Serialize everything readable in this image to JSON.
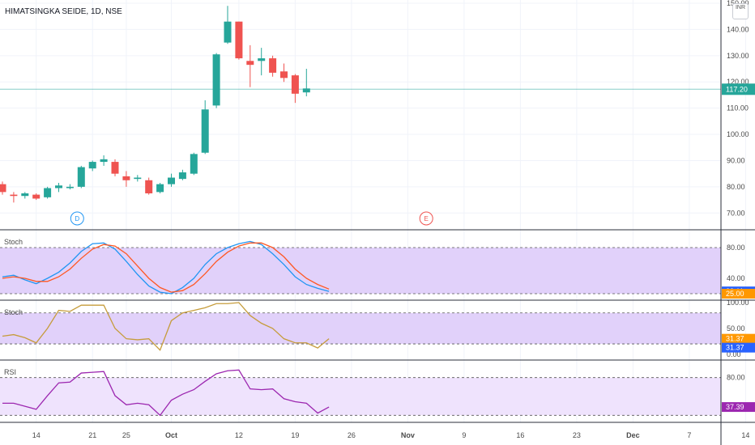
{
  "header": {
    "symbol_title": "HIMATSINGKA SEIDE, 1D, NSE",
    "currency_line1": "",
    "currency_line2": "INR"
  },
  "colors": {
    "up": "#26a69a",
    "down": "#ef5350",
    "stoch_k": "#2196f3",
    "stoch_d": "#ff5722",
    "stoch2_line": "#c69c3b",
    "rsi_line": "#9c27b0",
    "band_fill": "#e1d1fa",
    "band_fill_rsi": "#efe3fd",
    "last_price": "#26a69a",
    "badge_blue": "#2962ff",
    "badge_orange": "#ff9800",
    "badge_purple": "#9c27b0"
  },
  "chart_data": [
    {
      "type": "candlestick",
      "title": "HIMATSINGKA SEIDE, 1D, NSE",
      "ylim": [
        67,
        150
      ],
      "y_ticks": [
        "150.00",
        "140.00",
        "130.00",
        "120.00",
        "110.00",
        "100.00",
        "90.00",
        "80.00",
        "70.00"
      ],
      "y_tick_values": [
        150,
        140,
        130,
        120,
        110,
        100,
        90,
        80,
        70
      ],
      "x_ticks": [
        {
          "label": "14",
          "i": 3
        },
        {
          "label": "21",
          "i": 8
        },
        {
          "label": "25",
          "i": 11
        },
        {
          "label": "Oct",
          "i": 15
        },
        {
          "label": "12",
          "i": 21
        },
        {
          "label": "19",
          "i": 26
        },
        {
          "label": "26",
          "i": 31
        },
        {
          "label": "Nov",
          "i": 36
        },
        {
          "label": "9",
          "i": 41
        },
        {
          "label": "16",
          "i": 46
        },
        {
          "label": "23",
          "i": 51
        },
        {
          "label": "Dec",
          "i": 56
        },
        {
          "label": "7",
          "i": 61
        },
        {
          "label": "14",
          "i": 66
        }
      ],
      "candles": [
        {
          "o": 81,
          "h": 82,
          "l": 77,
          "c": 78
        },
        {
          "o": 77,
          "h": 78,
          "l": 74,
          "c": 76.5
        },
        {
          "o": 76.5,
          "h": 78,
          "l": 75.5,
          "c": 77.5
        },
        {
          "o": 77,
          "h": 77.5,
          "l": 75,
          "c": 75.5
        },
        {
          "o": 76,
          "h": 80,
          "l": 75.5,
          "c": 79.5
        },
        {
          "o": 79.5,
          "h": 81.5,
          "l": 78,
          "c": 80.5
        },
        {
          "o": 79.5,
          "h": 81,
          "l": 79,
          "c": 80
        },
        {
          "o": 80,
          "h": 88,
          "l": 79.5,
          "c": 87.5
        },
        {
          "o": 87,
          "h": 90,
          "l": 86,
          "c": 89.5
        },
        {
          "o": 89.5,
          "h": 92,
          "l": 88,
          "c": 90.5
        },
        {
          "o": 89.5,
          "h": 90.5,
          "l": 84,
          "c": 85
        },
        {
          "o": 84,
          "h": 86,
          "l": 80,
          "c": 82.5
        },
        {
          "o": 83,
          "h": 84.5,
          "l": 82,
          "c": 83.5
        },
        {
          "o": 82.5,
          "h": 83.5,
          "l": 77,
          "c": 77.5
        },
        {
          "o": 78,
          "h": 81.5,
          "l": 77.5,
          "c": 81
        },
        {
          "o": 81,
          "h": 85,
          "l": 80,
          "c": 83.5
        },
        {
          "o": 83,
          "h": 86.5,
          "l": 82.5,
          "c": 85.5
        },
        {
          "o": 85,
          "h": 93,
          "l": 84.5,
          "c": 92.5
        },
        {
          "o": 93,
          "h": 113,
          "l": 92.5,
          "c": 109.5
        },
        {
          "o": 111,
          "h": 131,
          "l": 110,
          "c": 130.5
        },
        {
          "o": 135,
          "h": 149,
          "l": 134.5,
          "c": 143
        },
        {
          "o": 143,
          "h": 143,
          "l": 128.5,
          "c": 129
        },
        {
          "o": 128,
          "h": 134,
          "l": 118,
          "c": 126.5
        },
        {
          "o": 128,
          "h": 133,
          "l": 122.5,
          "c": 129
        },
        {
          "o": 129,
          "h": 130,
          "l": 122,
          "c": 123.5
        },
        {
          "o": 124,
          "h": 127,
          "l": 120,
          "c": 121.5
        },
        {
          "o": 122.5,
          "h": 123,
          "l": 112,
          "c": 115.5
        },
        {
          "o": 116,
          "h": 125,
          "l": 114.5,
          "c": 117.5
        }
      ],
      "last_price": 117.2,
      "last_price_label": "117.20",
      "event_markers": [
        {
          "text": "D",
          "i": 7
        },
        {
          "text": "E",
          "i": 38
        }
      ]
    },
    {
      "type": "line",
      "title": "Stoch",
      "ylim": [
        20,
        100
      ],
      "y_ticks": [
        "80.00",
        "40.00"
      ],
      "y_tick_values": [
        80,
        40
      ],
      "bands": [
        80,
        20
      ],
      "series": [
        {
          "values": [
            42,
            44,
            38,
            33,
            40,
            48,
            60,
            75,
            85,
            86,
            78,
            62,
            45,
            30,
            22,
            20,
            28,
            40,
            58,
            72,
            80,
            85,
            88,
            84,
            72,
            58,
            42,
            32,
            27,
            23
          ]
        },
        {
          "values": [
            40,
            42,
            40,
            36,
            36,
            42,
            52,
            66,
            78,
            84,
            82,
            72,
            56,
            40,
            28,
            22,
            24,
            32,
            46,
            62,
            74,
            82,
            86,
            86,
            80,
            68,
            52,
            40,
            32,
            26
          ]
        }
      ],
      "badges": [
        "23.11",
        "25.00"
      ]
    },
    {
      "type": "line",
      "title": "Stoch",
      "ylim": [
        -5,
        100
      ],
      "y_ticks": [
        "100.00",
        "50.00",
        "0.00"
      ],
      "y_tick_values": [
        100,
        50,
        0
      ],
      "bands": [
        80,
        20
      ],
      "series": [
        {
          "values": [
            35,
            38,
            32,
            22,
            50,
            85,
            83,
            95,
            95,
            95,
            50,
            30,
            28,
            30,
            8,
            65,
            80,
            85,
            90,
            98,
            98,
            100,
            75,
            60,
            50,
            30,
            22,
            22,
            12,
            30
          ]
        }
      ],
      "badges": [
        "31.37",
        "31.37"
      ]
    },
    {
      "type": "line",
      "title": "RSI",
      "ylim": [
        25,
        100
      ],
      "y_ticks": [
        "80.00"
      ],
      "y_tick_values": [
        80
      ],
      "bands": [
        80,
        30
      ],
      "series": [
        {
          "values": [
            46,
            46,
            42,
            38,
            56,
            73,
            74,
            86,
            87,
            88,
            56,
            44,
            46,
            44,
            30,
            50,
            58,
            64,
            75,
            85,
            89,
            90,
            65,
            64,
            65,
            52,
            48,
            46,
            33,
            41
          ]
        }
      ],
      "badges": [
        "37.39"
      ]
    }
  ]
}
